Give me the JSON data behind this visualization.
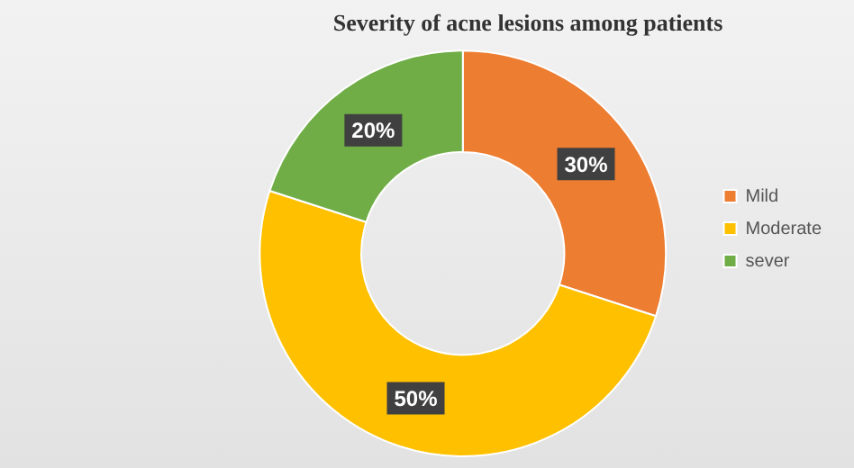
{
  "chart_data": {
    "type": "donut",
    "title": "Severity of acne lesions among patients",
    "categories": [
      "Mild",
      "Moderate",
      "sever"
    ],
    "values": [
      30,
      50,
      20
    ],
    "value_labels": [
      "30%",
      "50%",
      "20%"
    ],
    "colors": [
      "#ed7d31",
      "#ffc000",
      "#70ad47"
    ],
    "legend": "right"
  }
}
